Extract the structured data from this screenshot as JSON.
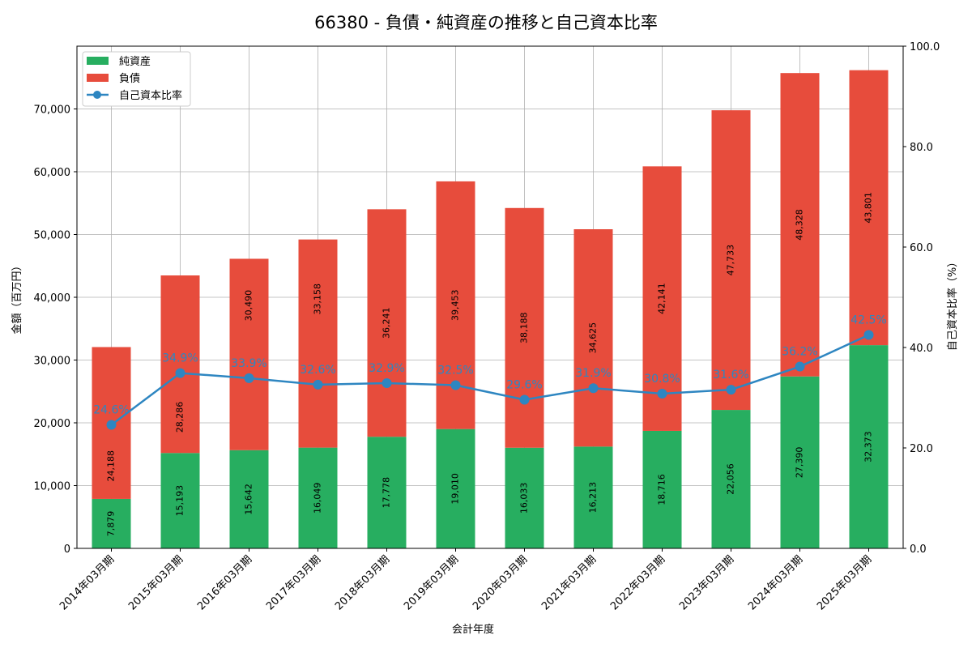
{
  "chart_data": {
    "type": "bar",
    "title": "66380 - 負債・純資産の推移と自己資本比率",
    "xlabel": "会計年度",
    "ylabel": "金額（百万円）",
    "y2label": "自己資本比率（%）",
    "ylim": [
      0,
      80000
    ],
    "y2lim": [
      0,
      100
    ],
    "yticks": [
      "0",
      "10,000",
      "20,000",
      "30,000",
      "40,000",
      "50,000",
      "60,000",
      "70,000"
    ],
    "y2ticks": [
      "0.0",
      "20.0",
      "40.0",
      "60.0",
      "80.0",
      "100.0"
    ],
    "grid": true,
    "legend_position": "top-left",
    "categories": [
      "2014年03月期",
      "2015年03月期",
      "2016年03月期",
      "2017年03月期",
      "2018年03月期",
      "2019年03月期",
      "2020年03月期",
      "2021年03月期",
      "2022年03月期",
      "2023年03月期",
      "2024年03月期",
      "2025年03月期"
    ],
    "series": [
      {
        "name": "純資産",
        "type": "bar",
        "stack": true,
        "color": "#27ae60",
        "values": [
          7879,
          15193,
          15642,
          16049,
          17778,
          19010,
          16033,
          16213,
          18716,
          22056,
          27390,
          32373
        ],
        "labels": [
          "7,879",
          "15,193",
          "15,642",
          "16,049",
          "17,778",
          "19,010",
          "16,033",
          "16,213",
          "18,716",
          "22,056",
          "27,390",
          "32,373"
        ]
      },
      {
        "name": "負債",
        "type": "bar",
        "stack": true,
        "color": "#e74c3c",
        "values": [
          24188,
          28286,
          30490,
          33158,
          36241,
          39453,
          38188,
          34625,
          42141,
          47733,
          48328,
          43801
        ],
        "labels": [
          "24,188",
          "28,286",
          "30,490",
          "33,158",
          "36,241",
          "39,453",
          "38,188",
          "34,625",
          "42,141",
          "47,733",
          "48,328",
          "43,801"
        ]
      },
      {
        "name": "自己資本比率",
        "type": "line",
        "axis": "right",
        "color": "#2e86c1",
        "values": [
          24.6,
          34.9,
          33.9,
          32.6,
          32.9,
          32.5,
          29.6,
          31.9,
          30.8,
          31.6,
          36.2,
          42.5
        ],
        "labels": [
          "24.6%",
          "34.9%",
          "33.9%",
          "32.6%",
          "32.9%",
          "32.5%",
          "29.6%",
          "31.9%",
          "30.8%",
          "31.6%",
          "36.2%",
          "42.5%"
        ]
      }
    ]
  }
}
